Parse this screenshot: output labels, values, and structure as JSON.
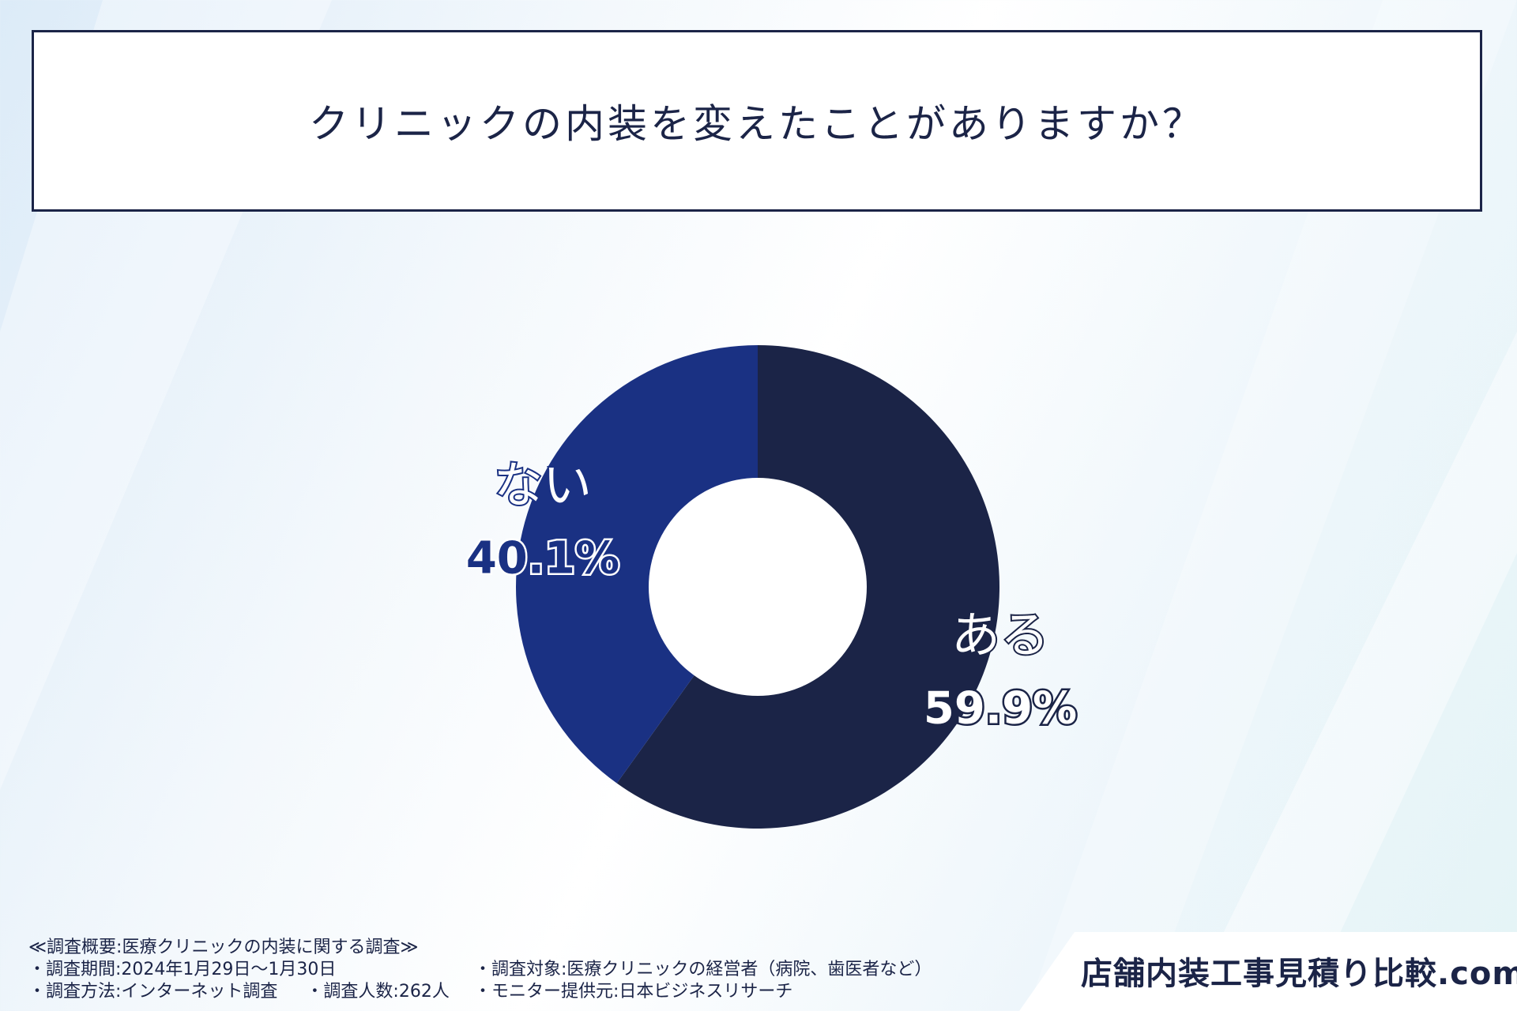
{
  "title": "クリニックの内装を変えたことがありますか？",
  "chart_data": {
    "type": "pie",
    "subtype": "donut",
    "title": "クリニックの内装を変えたことがありますか？",
    "series": [
      {
        "name": "ある",
        "value": 59.9,
        "label": "59.9%",
        "color": "#1b2447"
      },
      {
        "name": "ない",
        "value": 40.1,
        "label": "40.1%",
        "color": "#1a3183"
      }
    ],
    "start_angle": "top",
    "direction": "clockwise"
  },
  "footer": {
    "heading": "≪調査概要:医療クリニックの内装に関する調査≫",
    "period": "・調査期間:2024年1月29日〜1月30日",
    "method": "・調査方法:インターネット調査",
    "count": "・調査人数:262人",
    "target": "・調査対象:医療クリニックの経営者（病院、歯医者など）",
    "provider": "・モニター提供元:日本ビジネスリサーチ"
  },
  "brand": "店舗内装工事見積り比較.com"
}
